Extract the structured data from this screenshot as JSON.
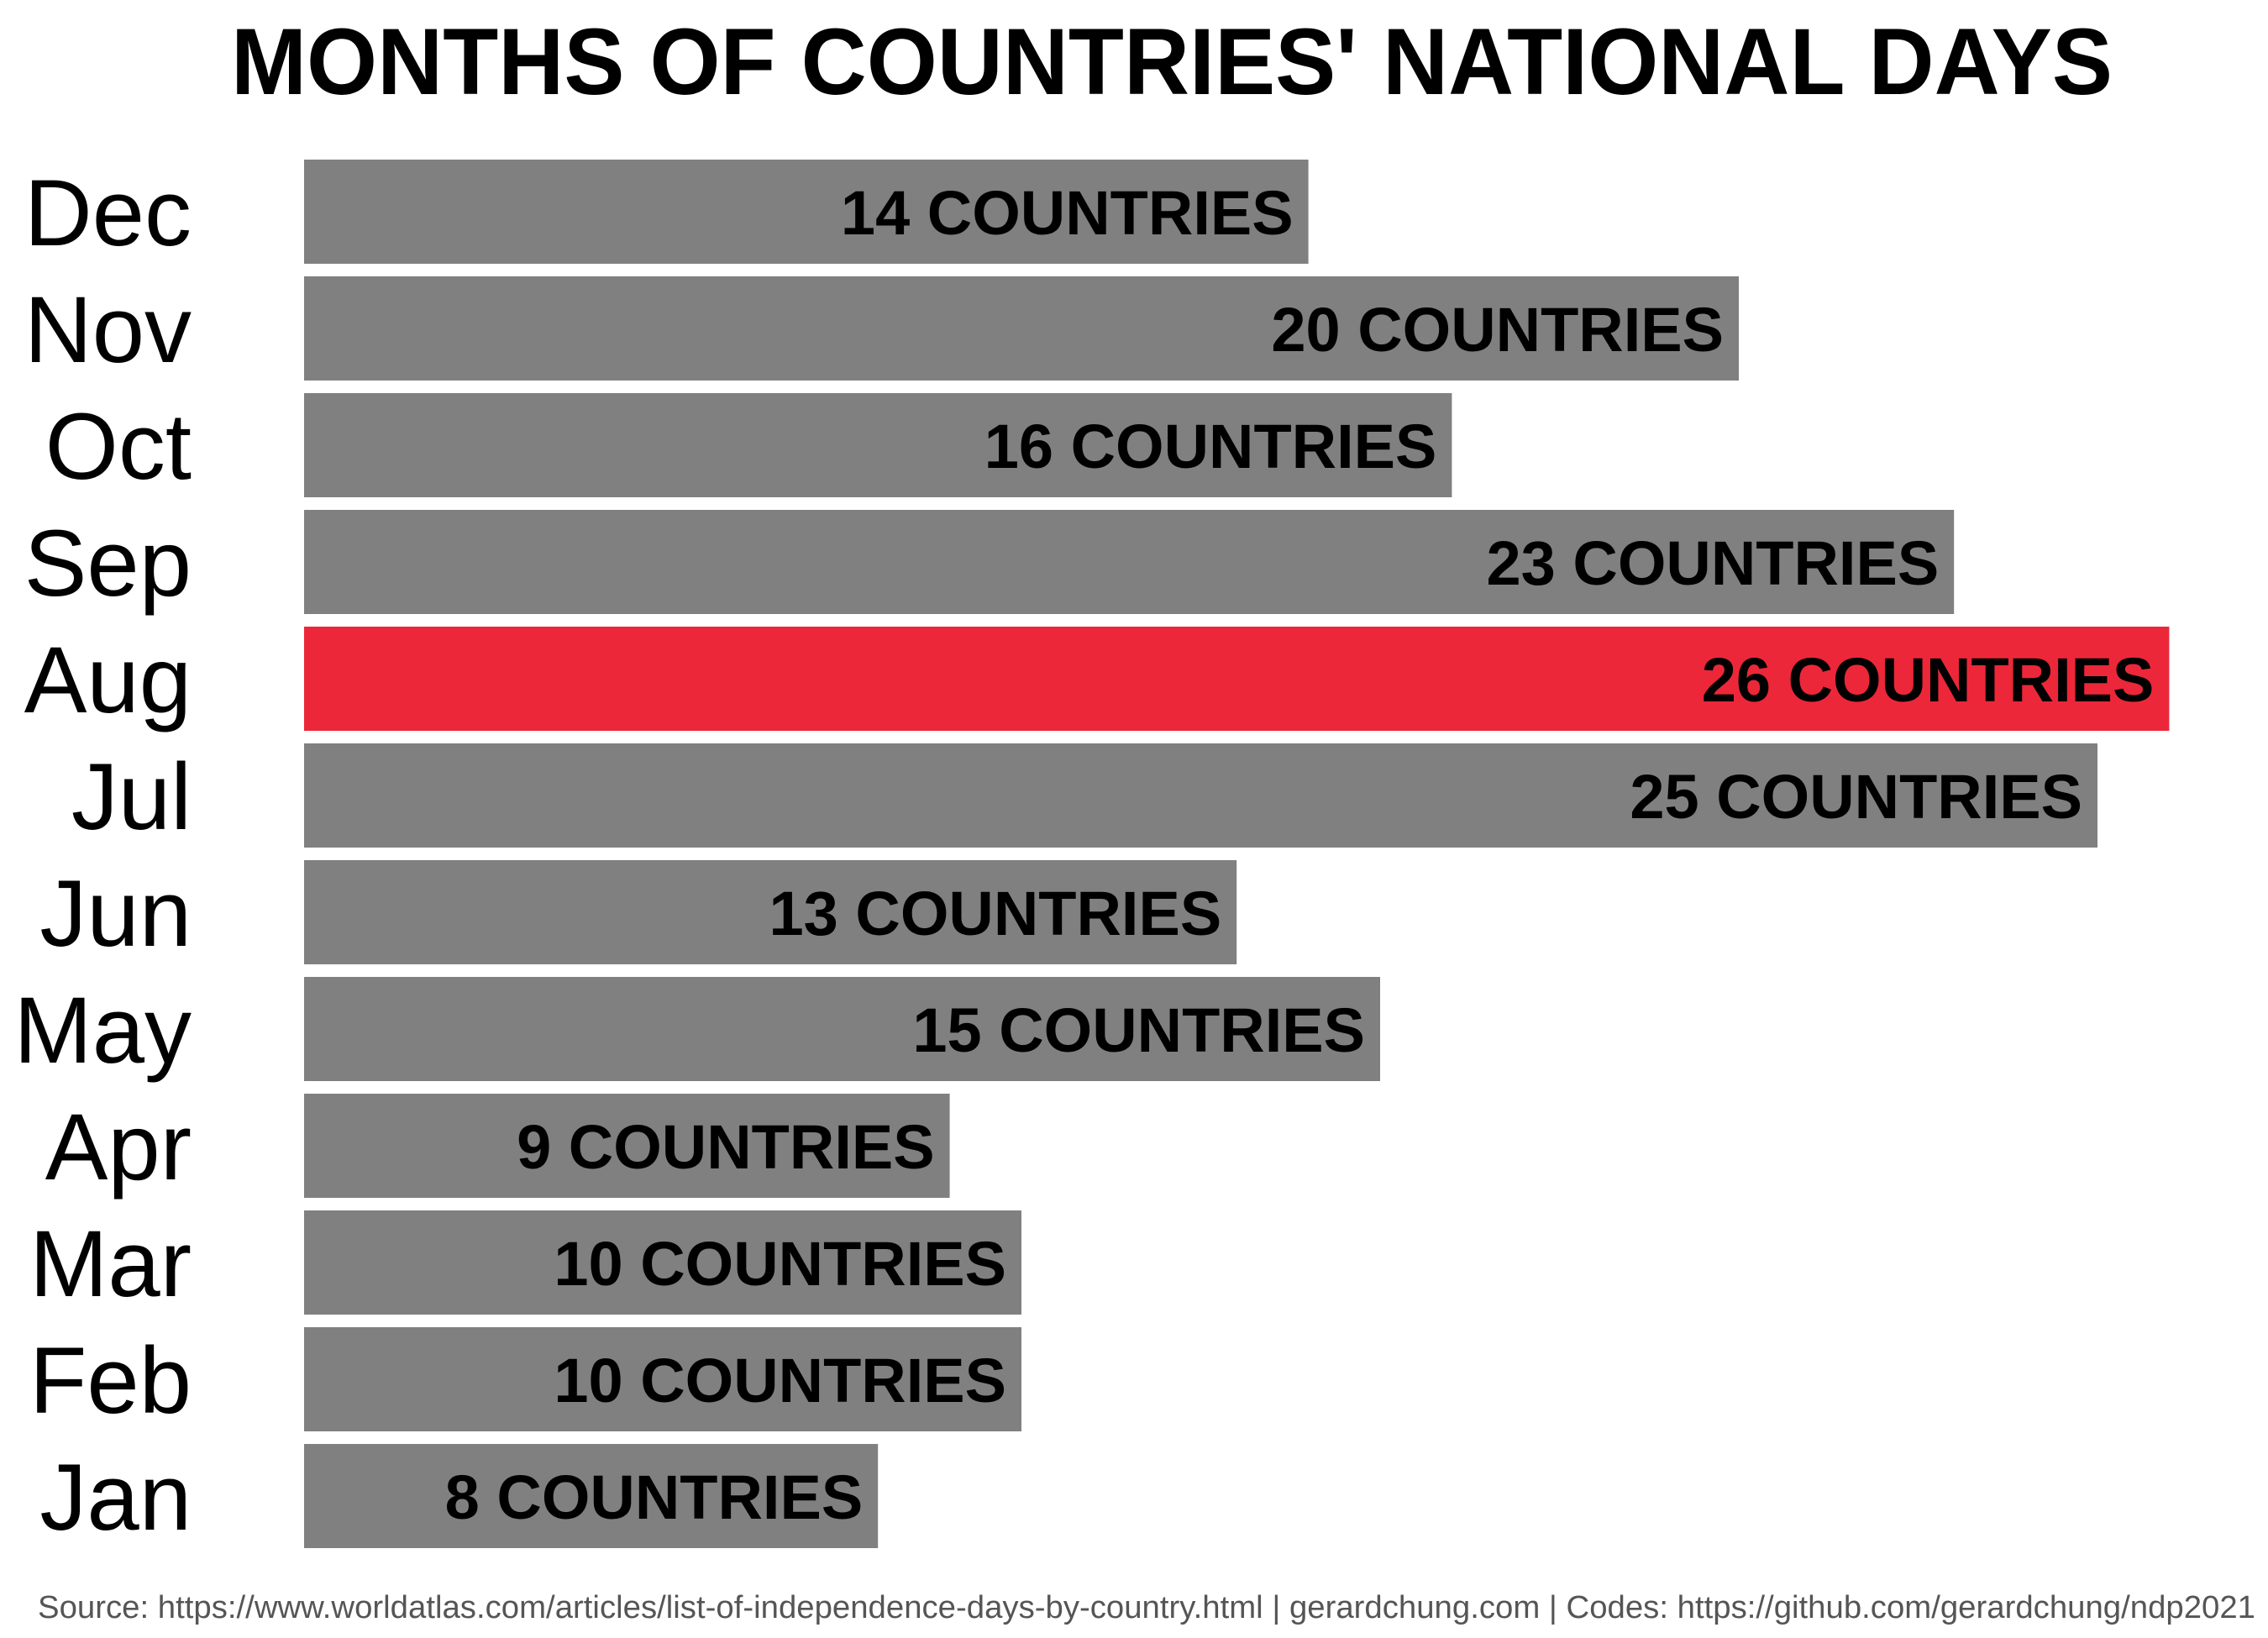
{
  "title": "MONTHS OF COUNTRIES' NATIONAL DAYS",
  "source": "Source: https://www.worldatlas.com/articles/list-of-independence-days-by-country.html | gerardchung.com | Codes: https://github.com/gerardchung/ndp2021",
  "colors": {
    "bar": "#808080",
    "highlight": "#ec2739",
    "text": "#000000",
    "source_text": "#555555",
    "background": "#ffffff"
  },
  "chart_data": {
    "type": "bar",
    "orientation": "horizontal",
    "title": "MONTHS OF COUNTRIES' NATIONAL DAYS",
    "categories": [
      "Dec",
      "Nov",
      "Oct",
      "Sep",
      "Aug",
      "Jul",
      "Jun",
      "May",
      "Apr",
      "Mar",
      "Feb",
      "Jan"
    ],
    "values": [
      14,
      20,
      16,
      23,
      26,
      25,
      13,
      15,
      9,
      10,
      10,
      8
    ],
    "labels": [
      "14 COUNTRIES",
      "20 COUNTRIES",
      "16 COUNTRIES",
      "23 COUNTRIES",
      "26 COUNTRIES",
      "25 COUNTRIES",
      "13 COUNTRIES",
      "15 COUNTRIES",
      "9 COUNTRIES",
      "10 COUNTRIES",
      "10 COUNTRIES",
      "8 COUNTRIES"
    ],
    "highlight_category": "Aug",
    "xlim": [
      0,
      26
    ],
    "grid": false,
    "legend": "none"
  }
}
